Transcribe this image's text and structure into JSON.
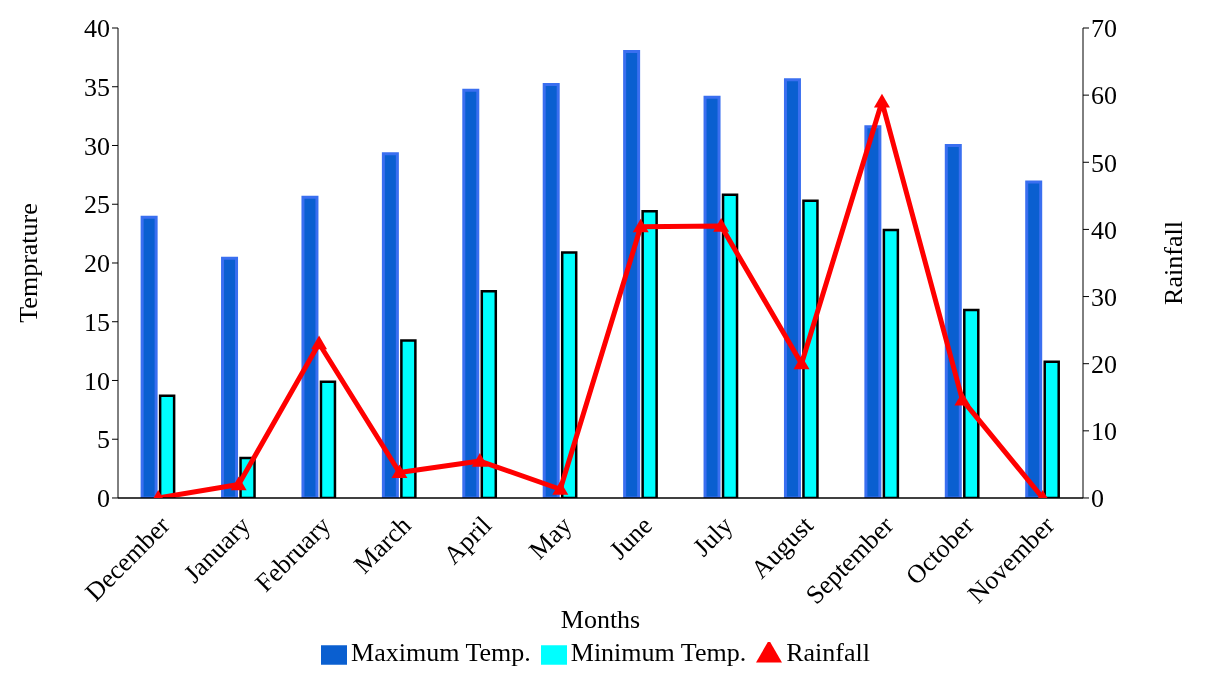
{
  "chart_data": {
    "type": "bar",
    "xlabel": "Months",
    "ylabel": "Temprature",
    "y2label": "Rainfall",
    "categories": [
      "December",
      "January",
      "February",
      "March",
      "April",
      "May",
      "June",
      "July",
      "August",
      "September",
      "October",
      "November"
    ],
    "series": [
      {
        "name": "Maximum Temp.",
        "color": "#0a5fd0",
        "values": [
          23.9,
          20.4,
          25.6,
          29.3,
          34.7,
          35.2,
          38.0,
          34.1,
          35.6,
          31.6,
          30.0,
          26.9
        ]
      },
      {
        "name": "Minimum Temp.",
        "color": "#00ffff",
        "values": [
          8.7,
          3.4,
          9.9,
          13.4,
          17.6,
          20.9,
          24.4,
          25.8,
          25.3,
          22.8,
          16.0,
          11.6
        ]
      },
      {
        "name": "Rainfall",
        "type": "line",
        "axis": "y2",
        "color": "#ff0000",
        "marker": "triangle",
        "line_style": "solid",
        "values": [
          0,
          2,
          23,
          3.8,
          5.5,
          1.3,
          40.4,
          40.5,
          20,
          59,
          14.6,
          0
        ]
      }
    ],
    "ylim": [
      0,
      40
    ],
    "yticks": [
      0,
      5,
      10,
      15,
      20,
      25,
      30,
      35,
      40
    ],
    "y2lim": [
      0,
      70
    ],
    "y2ticks": [
      0,
      10,
      20,
      30,
      40,
      50,
      60,
      70
    ],
    "grid": false,
    "legend": "bottom"
  }
}
